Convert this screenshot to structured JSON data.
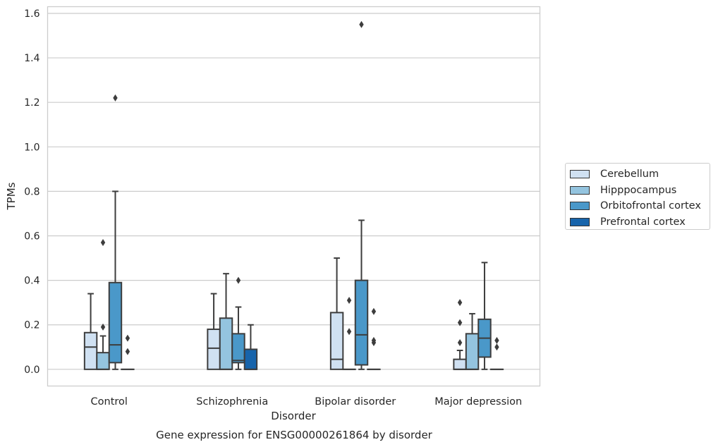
{
  "chart_data": {
    "type": "box",
    "title": "Gene expression for ENSG00000261864 by disorder",
    "xlabel": "Disorder",
    "ylabel": "TPMs",
    "ylim": [
      -0.075,
      1.63
    ],
    "yticks": [
      "0.0",
      "0.2",
      "0.4",
      "0.6",
      "0.8",
      "1.0",
      "1.2",
      "1.4",
      "1.6"
    ],
    "grid": "horizontal",
    "legend_position": "right",
    "categories": [
      "Control",
      "Schizophrenia",
      "Bipolar disorder",
      "Major depression"
    ],
    "series": [
      {
        "name": "Cerebellum",
        "color": "#d0e1f2",
        "boxes": [
          {
            "min": 0,
            "q1": 0,
            "median": 0.1,
            "q3": 0.165,
            "max": 0.34,
            "outliers": []
          },
          {
            "min": 0,
            "q1": 0,
            "median": 0.095,
            "q3": 0.18,
            "max": 0.34,
            "outliers": []
          },
          {
            "min": 0,
            "q1": 0,
            "median": 0.045,
            "q3": 0.255,
            "max": 0.5,
            "outliers": []
          },
          {
            "min": 0,
            "q1": 0,
            "median": 0,
            "q3": 0.045,
            "max": 0.085,
            "outliers": [
              0.12,
              0.21,
              0.3
            ]
          }
        ]
      },
      {
        "name": "Hipppocampus",
        "color": "#94c4df",
        "boxes": [
          {
            "min": 0,
            "q1": 0,
            "median": 0,
            "q3": 0.075,
            "max": 0.15,
            "outliers": [
              0.19,
              0.57
            ]
          },
          {
            "min": 0,
            "q1": 0,
            "median": 0,
            "q3": 0.23,
            "max": 0.43,
            "outliers": []
          },
          {
            "min": 0,
            "q1": 0,
            "median": 0,
            "q3": 0,
            "max": 0,
            "outliers": [
              0.17,
              0.31
            ]
          },
          {
            "min": 0,
            "q1": 0,
            "median": 0,
            "q3": 0.16,
            "max": 0.25,
            "outliers": []
          }
        ]
      },
      {
        "name": "Orbitofrontal cortex",
        "color": "#4a98c9",
        "boxes": [
          {
            "min": 0,
            "q1": 0.03,
            "median": 0.11,
            "q3": 0.39,
            "max": 0.8,
            "outliers": [
              1.22
            ]
          },
          {
            "min": 0,
            "q1": 0.03,
            "median": 0.04,
            "q3": 0.16,
            "max": 0.28,
            "outliers": [
              0.4
            ]
          },
          {
            "min": 0,
            "q1": 0.02,
            "median": 0.155,
            "q3": 0.4,
            "max": 0.67,
            "outliers": [
              1.55
            ]
          },
          {
            "min": 0,
            "q1": 0.055,
            "median": 0.14,
            "q3": 0.225,
            "max": 0.48,
            "outliers": []
          }
        ]
      },
      {
        "name": "Prefrontal cortex",
        "color": "#1764ab",
        "boxes": [
          {
            "min": 0,
            "q1": 0,
            "median": 0,
            "q3": 0,
            "max": 0,
            "outliers": [
              0.08,
              0.14
            ]
          },
          {
            "min": 0,
            "q1": 0,
            "median": 0,
            "q3": 0.09,
            "max": 0.2,
            "outliers": []
          },
          {
            "min": 0,
            "q1": 0,
            "median": 0,
            "q3": 0,
            "max": 0,
            "outliers": [
              0.12,
              0.13,
              0.26
            ]
          },
          {
            "min": 0,
            "q1": 0,
            "median": 0,
            "q3": 0,
            "max": 0,
            "outliers": [
              0.1,
              0.13
            ]
          }
        ]
      }
    ]
  }
}
